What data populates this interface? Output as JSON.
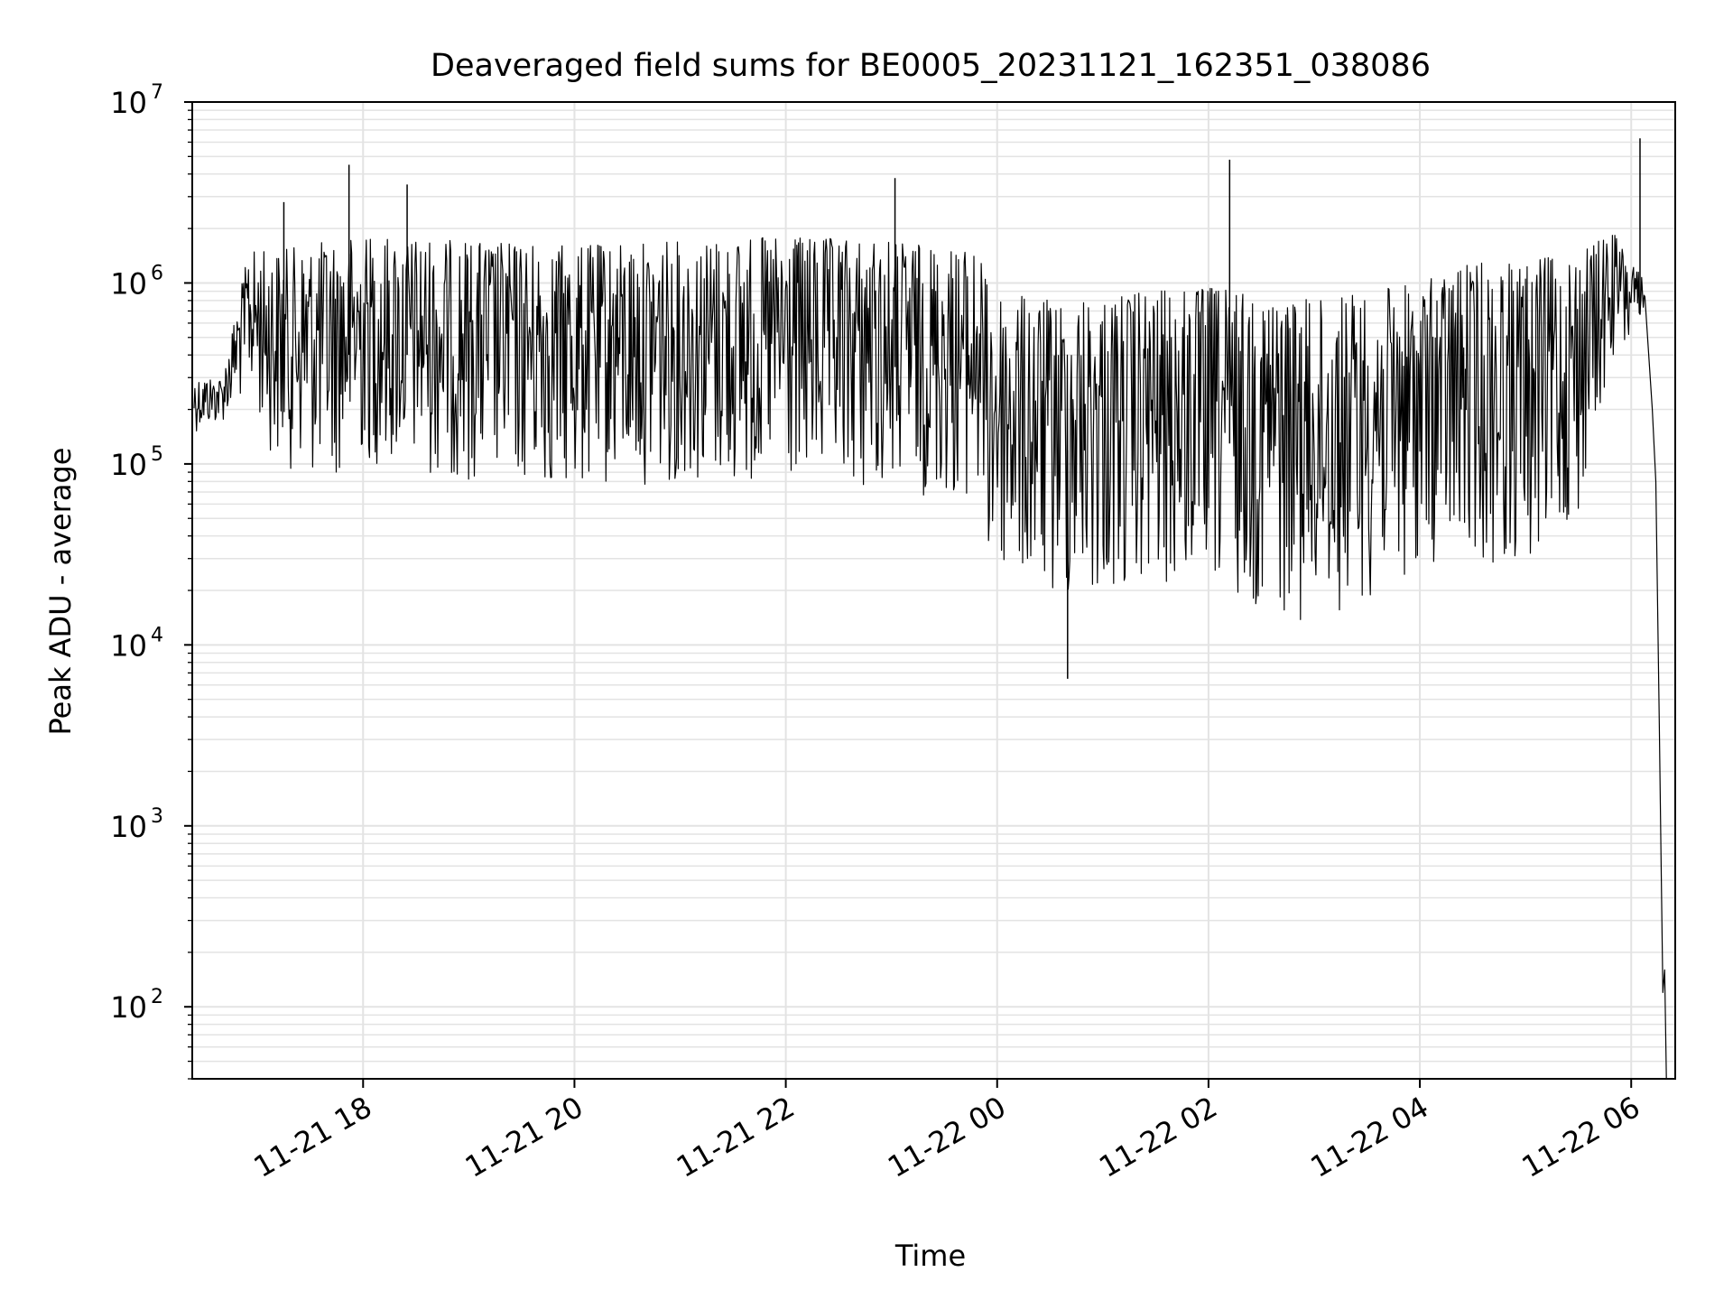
{
  "chart_data": {
    "type": "line",
    "title": "Deaveraged field sums for BE0005_20231121_162351_038086",
    "xlabel": "Time",
    "ylabel": "Peak ADU - average",
    "yscale": "log",
    "xlim": [
      "2023-11-21T16:23",
      "2023-11-22T06:25"
    ],
    "ylim": [
      40,
      10000000
    ],
    "xticks": [
      {
        "t": "2023-11-21T18:00",
        "label": "11-21 18"
      },
      {
        "t": "2023-11-21T20:00",
        "label": "11-21 20"
      },
      {
        "t": "2023-11-21T22:00",
        "label": "11-21 22"
      },
      {
        "t": "2023-11-22T00:00",
        "label": "11-22 00"
      },
      {
        "t": "2023-11-22T02:00",
        "label": "11-22 02"
      },
      {
        "t": "2023-11-22T04:00",
        "label": "11-22 04"
      },
      {
        "t": "2023-11-22T06:00",
        "label": "11-22 06"
      }
    ],
    "yticks": [
      {
        "exp": 2,
        "label": "10",
        "sup": "2"
      },
      {
        "exp": 3,
        "label": "10",
        "sup": "3"
      },
      {
        "exp": 4,
        "label": "10",
        "sup": "4"
      },
      {
        "exp": 5,
        "label": "10",
        "sup": "5"
      },
      {
        "exp": 6,
        "label": "10",
        "sup": "6"
      },
      {
        "exp": 7,
        "label": "10",
        "sup": "7"
      }
    ],
    "grid": true,
    "line_color": "#000000",
    "grid_color": "#e3e3e3",
    "series": [
      {
        "name": "",
        "envelope": [
          {
            "t": "2023-11-21T16:24",
            "high": 300000,
            "low": 150000
          },
          {
            "t": "2023-11-21T16:40",
            "high": 300000,
            "low": 170000
          },
          {
            "t": "2023-11-21T16:55",
            "high": 1500000,
            "low": 250000
          },
          {
            "t": "2023-11-21T17:10",
            "high": 1500000,
            "low": 100000
          },
          {
            "t": "2023-11-21T17:40",
            "high": 1700000,
            "low": 80000
          },
          {
            "t": "2023-11-21T18:00",
            "high": 1800000,
            "low": 100000
          },
          {
            "t": "2023-11-21T19:00",
            "high": 1700000,
            "low": 80000
          },
          {
            "t": "2023-11-21T20:00",
            "high": 1600000,
            "low": 70000
          },
          {
            "t": "2023-11-21T21:00",
            "high": 1700000,
            "low": 80000
          },
          {
            "t": "2023-11-21T22:00",
            "high": 1800000,
            "low": 70000
          },
          {
            "t": "2023-11-21T23:00",
            "high": 1700000,
            "low": 70000
          },
          {
            "t": "2023-11-21T23:50",
            "high": 1500000,
            "low": 60000
          },
          {
            "t": "2023-11-21T23:55",
            "high": 900000,
            "low": 25000
          },
          {
            "t": "2023-11-22T00:30",
            "high": 800000,
            "low": 17000
          },
          {
            "t": "2023-11-22T01:00",
            "high": 850000,
            "low": 18000
          },
          {
            "t": "2023-11-22T02:00",
            "high": 950000,
            "low": 20000
          },
          {
            "t": "2023-11-22T03:00",
            "high": 800000,
            "low": 13000
          },
          {
            "t": "2023-11-22T04:00",
            "high": 1000000,
            "low": 25000
          },
          {
            "t": "2023-11-22T04:30",
            "high": 1300000,
            "low": 30000
          },
          {
            "t": "2023-11-22T05:00",
            "high": 1300000,
            "low": 25000
          },
          {
            "t": "2023-11-22T05:30",
            "high": 1500000,
            "low": 50000
          },
          {
            "t": "2023-11-22T05:50",
            "high": 1900000,
            "low": 400000
          },
          {
            "t": "2023-11-22T06:08",
            "high": 1000000,
            "low": 400000
          }
        ],
        "spikes": [
          {
            "t": "2023-11-21T17:52",
            "y": 4500000
          },
          {
            "t": "2023-11-21T18:25",
            "y": 3500000
          },
          {
            "t": "2023-11-21T17:15",
            "y": 2800000
          },
          {
            "t": "2023-11-21T23:02",
            "y": 3800000
          },
          {
            "t": "2023-11-22T02:12",
            "y": 4800000
          },
          {
            "t": "2023-11-22T06:05",
            "y": 6300000
          },
          {
            "t": "2023-11-22T00:40",
            "y": 6500
          }
        ],
        "tail": [
          {
            "t": "2023-11-22T06:12",
            "y": 200000
          },
          {
            "t": "2023-11-22T06:14",
            "y": 80000
          },
          {
            "t": "2023-11-22T06:16",
            "y": 3500
          },
          {
            "t": "2023-11-22T06:17",
            "y": 600
          },
          {
            "t": "2023-11-22T06:18",
            "y": 120
          },
          {
            "t": "2023-11-22T06:19",
            "y": 160
          },
          {
            "t": "2023-11-22T06:20",
            "y": 40
          }
        ]
      }
    ]
  }
}
